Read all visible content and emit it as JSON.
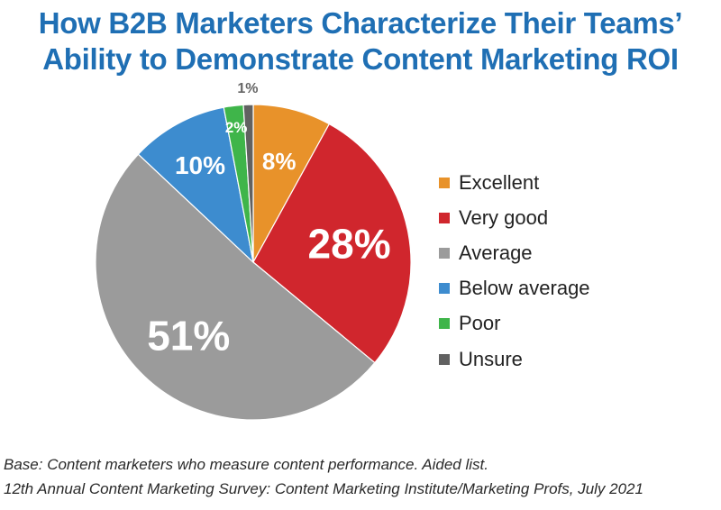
{
  "title_lines": [
    "How B2B Marketers Characterize Their Teams’",
    "Ability to Demonstrate Content Marketing ROI"
  ],
  "chart_data": {
    "type": "pie",
    "title": "How B2B Marketers Characterize Their Teams’ Ability to Demonstrate Content Marketing ROI",
    "legend_position": "right",
    "slices": [
      {
        "label": "Excellent",
        "value": 8,
        "display": "8%",
        "color": "#e8922a"
      },
      {
        "label": "Very good",
        "value": 28,
        "display": "28%",
        "color": "#d0262d"
      },
      {
        "label": "Average",
        "value": 51,
        "display": "51%",
        "color": "#9b9b9b"
      },
      {
        "label": "Below average",
        "value": 10,
        "display": "10%",
        "color": "#3d8ccf"
      },
      {
        "label": "Poor",
        "value": 2,
        "display": "2%",
        "color": "#3fb54a"
      },
      {
        "label": "Unsure",
        "value": 1,
        "display": "1%",
        "color": "#616161"
      }
    ]
  },
  "footnotes": {
    "base": "Base: Content marketers who measure content performance. Aided list.",
    "source": "12th Annual Content Marketing Survey: Content Marketing Institute/Marketing Profs, July 2021"
  }
}
